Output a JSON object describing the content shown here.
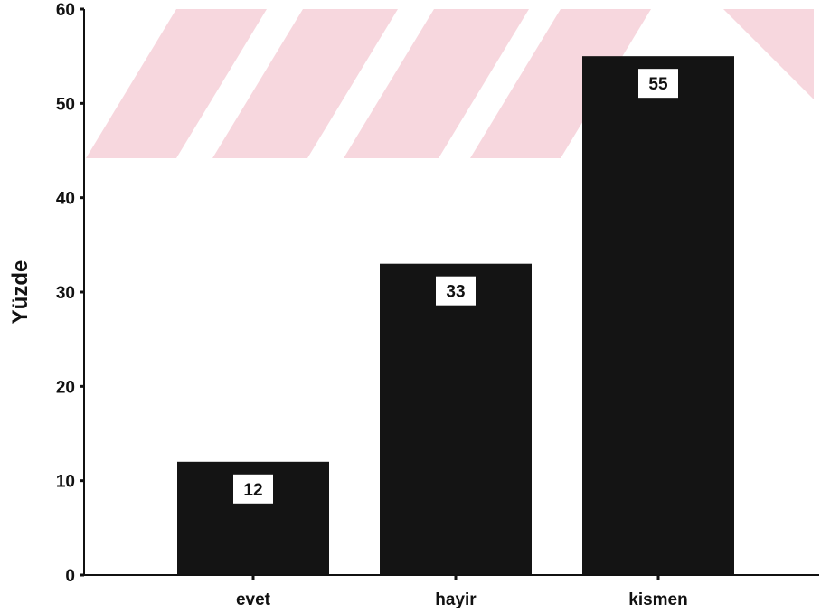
{
  "chart_data": {
    "type": "bar",
    "title": "",
    "xlabel": "",
    "ylabel": "Yüzde",
    "categories": [
      "evet",
      "hayir",
      "kismen"
    ],
    "values": [
      12,
      33,
      55
    ],
    "data_labels": [
      "12",
      "33",
      "55"
    ],
    "ylim": [
      0,
      60
    ],
    "yticks": [
      0,
      10,
      20,
      30,
      40,
      50,
      60
    ],
    "grid": false,
    "legend": "none",
    "bar_color": "#141414"
  },
  "decor": {
    "watermark_color": "#f7d7de"
  }
}
